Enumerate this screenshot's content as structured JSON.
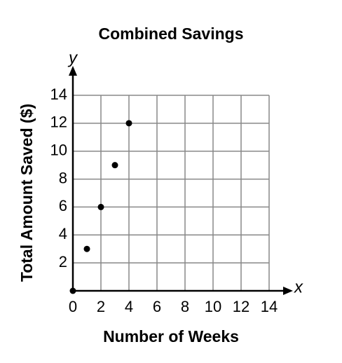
{
  "chart_data": {
    "type": "scatter",
    "title": "Combined Savings",
    "x_label": "Number of Weeks",
    "y_label": "Total Amount Saved ($)",
    "x_symbol": "x",
    "y_symbol": "y",
    "x": [
      0,
      1,
      2,
      3,
      4
    ],
    "values": [
      0,
      3,
      6,
      9,
      12
    ],
    "color": "#000000",
    "xlim": [
      0,
      14
    ],
    "ylim": [
      0,
      14
    ],
    "xticks": [
      0,
      2,
      4,
      6,
      8,
      10,
      12,
      14
    ],
    "yticks": [
      2,
      4,
      6,
      8,
      10,
      12,
      14
    ],
    "grid": true
  }
}
